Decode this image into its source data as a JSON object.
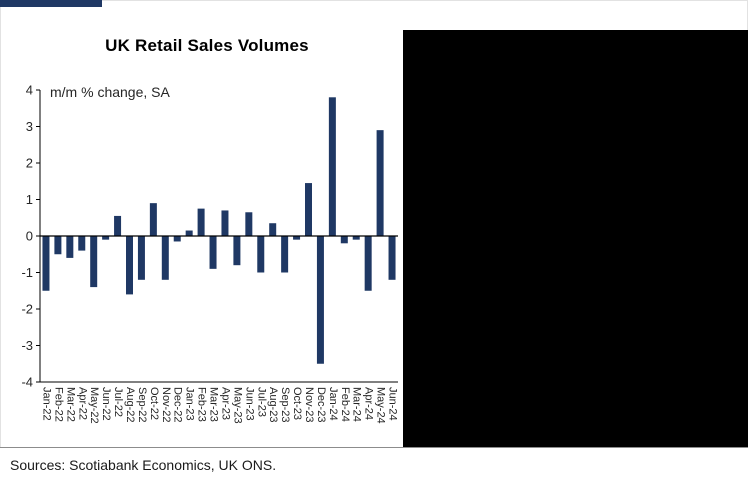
{
  "page": {
    "sources": "Sources: Scotiabank Economics, UK ONS."
  },
  "colors": {
    "accent": "#1f3864",
    "bar": "#1f3864",
    "panel": "#000000",
    "axis": "#000000",
    "label": "#262626"
  },
  "chart_data": {
    "type": "bar",
    "title": "UK Retail Sales Volumes",
    "annotation": "m/m % change, SA",
    "xlabel": "",
    "ylabel": "",
    "ylim": [
      -4,
      4
    ],
    "yticks": [
      4,
      3,
      2,
      1,
      0,
      -1,
      -2,
      -3,
      -4
    ],
    "grid": false,
    "legend": "none",
    "bar_color": "#1f3864",
    "categories": [
      "Jan-22",
      "Feb-22",
      "Mar-22",
      "Apr-22",
      "May-22",
      "Jun-22",
      "Jul-22",
      "Aug-22",
      "Sep-22",
      "Oct-22",
      "Nov-22",
      "Dec-22",
      "Jan-23",
      "Feb-23",
      "Mar-23",
      "Apr-23",
      "May-23",
      "Jun-23",
      "Jul-23",
      "Aug-23",
      "Sep-23",
      "Oct-23",
      "Nov-23",
      "Dec-23",
      "Jan-24",
      "Feb-24",
      "Mar-24",
      "Apr-24",
      "May-24",
      "Jun-24"
    ],
    "values": [
      -1.5,
      -0.5,
      -0.6,
      -0.4,
      -1.4,
      -0.1,
      0.55,
      -1.6,
      -1.2,
      0.9,
      -1.2,
      -0.15,
      0.15,
      0.75,
      -0.9,
      0.7,
      -0.8,
      0.65,
      -1.0,
      0.35,
      -1.0,
      -0.1,
      1.45,
      -3.5,
      3.8,
      -0.2,
      -0.1,
      -1.5,
      2.9,
      -1.2
    ]
  }
}
